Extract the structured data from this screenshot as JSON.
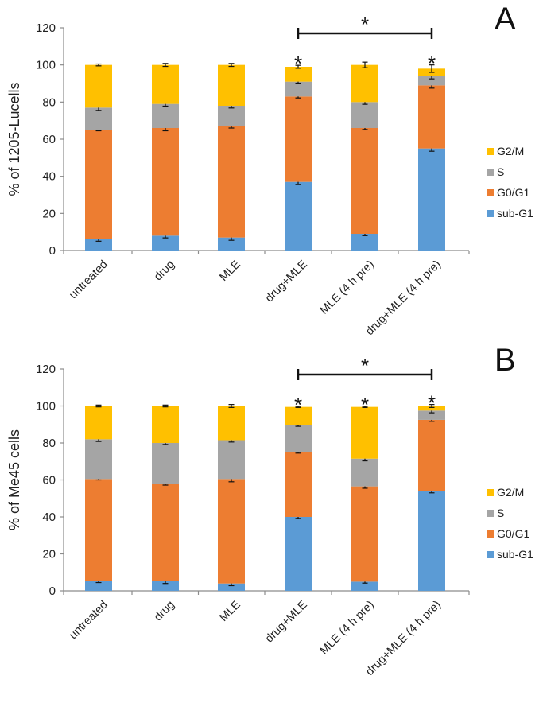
{
  "colors": {
    "sub-G1": "#5b9bd5",
    "G0/G1": "#ed7d31",
    "S": "#a5a5a5",
    "G2/M": "#ffc000",
    "axis": "#8c8c8c",
    "text": "#222222"
  },
  "chart_data": [
    {
      "type": "bar",
      "stacked": true,
      "panel_label": "A",
      "ylabel": "% of 1205-Lucells",
      "xlabel": "",
      "ylim": [
        0,
        120
      ],
      "yticks": [
        0,
        20,
        40,
        60,
        80,
        100,
        120
      ],
      "ytick_labels": [
        "0",
        "20",
        "40",
        "60",
        "80",
        "100",
        "120"
      ],
      "categories": [
        "untreated",
        "drug",
        "MLE",
        "drug+MLE",
        "MLE (4 h pre)",
        "drug+MLE (4 h pre)"
      ],
      "legend_position": "right",
      "legend": [
        "G2/M",
        "S",
        "G0/G1",
        "sub-G1"
      ],
      "series": [
        {
          "name": "sub-G1",
          "values": [
            6,
            8,
            7,
            37,
            9,
            55
          ],
          "errors": [
            1,
            1.2,
            1.5,
            1.5,
            1,
            1.5
          ]
        },
        {
          "name": "G0/G1",
          "values": [
            59,
            58,
            60,
            46,
            57,
            34
          ],
          "errors": [
            0.5,
            1.5,
            1,
            0.8,
            0.8,
            1.5
          ]
        },
        {
          "name": "S",
          "values": [
            12,
            13,
            11,
            8,
            14,
            5
          ],
          "errors": [
            1.5,
            1.2,
            1.2,
            0.8,
            1.2,
            1.5
          ]
        },
        {
          "name": "G2/M",
          "values": [
            23,
            21,
            22,
            8,
            20,
            4
          ],
          "errors": [
            0.5,
            0.8,
            0.8,
            0.8,
            1.5,
            2
          ]
        }
      ],
      "annotations": {
        "stars": [
          {
            "category": "drug+MLE",
            "text": "*"
          },
          {
            "category": "drug+MLE (4 h pre)",
            "text": "*"
          }
        ],
        "bracket": {
          "from": "drug+MLE",
          "to": "drug+MLE (4 h pre)",
          "text": "*"
        }
      }
    },
    {
      "type": "bar",
      "stacked": true,
      "panel_label": "B",
      "ylabel": "% of Me45 cells",
      "xlabel": "",
      "ylim": [
        0,
        120
      ],
      "yticks": [
        0,
        20,
        40,
        60,
        80,
        100,
        120
      ],
      "ytick_labels": [
        "0",
        "20",
        "40",
        "60",
        "80",
        "100",
        "120"
      ],
      "categories": [
        "untreated",
        "drug",
        "MLE",
        "drug+MLE",
        "MLE (4 h pre)",
        "drug+MLE (4 h pre)"
      ],
      "legend_position": "right",
      "legend": [
        "G2/M",
        "S",
        "G0/G1",
        "sub-G1"
      ],
      "series": [
        {
          "name": "sub-G1",
          "values": [
            5.5,
            5.5,
            4,
            40,
            5,
            54
          ],
          "errors": [
            1,
            1.5,
            1.2,
            0.8,
            0.8,
            1
          ]
        },
        {
          "name": "G0/G1",
          "values": [
            55,
            52.5,
            56.5,
            35,
            51.5,
            38.5
          ],
          "errors": [
            0.5,
            0.8,
            1.5,
            0.5,
            1,
            0.8
          ]
        },
        {
          "name": "S",
          "values": [
            21.5,
            22,
            21,
            14.5,
            15,
            5
          ],
          "errors": [
            1.2,
            0.8,
            1,
            0.5,
            1.2,
            1.2
          ]
        },
        {
          "name": "G2/M",
          "values": [
            18,
            20,
            18.5,
            10,
            28,
            2.5
          ],
          "errors": [
            0.5,
            0.5,
            0.8,
            0.3,
            0.3,
            0.8
          ]
        }
      ],
      "annotations": {
        "stars": [
          {
            "category": "drug+MLE",
            "text": "*"
          },
          {
            "category": "MLE (4 h pre)",
            "text": "*"
          },
          {
            "category": "drug+MLE (4 h pre)",
            "text": "*"
          }
        ],
        "bracket": {
          "from": "drug+MLE",
          "to": "drug+MLE (4 h pre)",
          "text": "*"
        }
      }
    }
  ]
}
